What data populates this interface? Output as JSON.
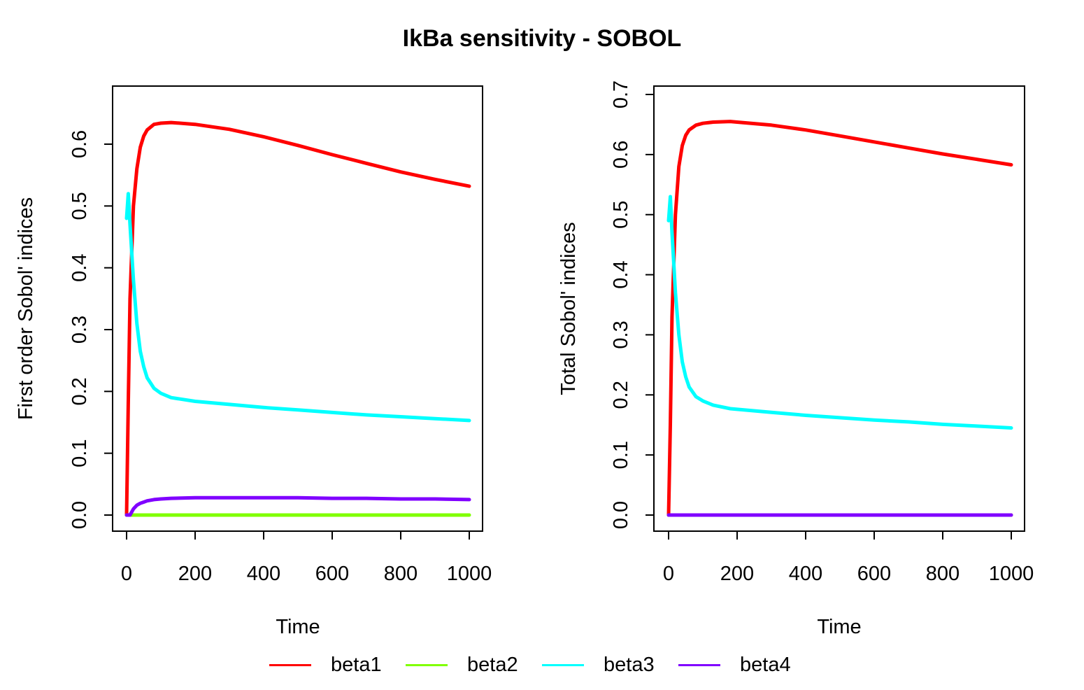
{
  "title": "IkBa sensitivity - SOBOL",
  "legend": [
    {
      "name": "beta1",
      "color": "#ff0000"
    },
    {
      "name": "beta2",
      "color": "#80ff00"
    },
    {
      "name": "beta3",
      "color": "#00ffff"
    },
    {
      "name": "beta4",
      "color": "#8000ff"
    }
  ],
  "chart_data": [
    {
      "type": "line",
      "xlabel": "Time",
      "ylabel": "First order Sobol' indices",
      "xlim": [
        0,
        1000
      ],
      "ylim": [
        0,
        0.6
      ],
      "xticks": [
        "0",
        "200",
        "400",
        "600",
        "800",
        "1000"
      ],
      "yticks": [
        "0.0",
        "0.1",
        "0.2",
        "0.3",
        "0.4",
        "0.5",
        "0.6"
      ],
      "x": [
        0,
        5,
        10,
        20,
        30,
        40,
        50,
        60,
        80,
        100,
        130,
        200,
        300,
        400,
        500,
        600,
        700,
        800,
        900,
        1000
      ],
      "series": [
        {
          "name": "beta1",
          "values": [
            0.0,
            0.18,
            0.35,
            0.5,
            0.56,
            0.595,
            0.613,
            0.623,
            0.632,
            0.634,
            0.635,
            0.632,
            0.624,
            0.612,
            0.598,
            0.583,
            0.569,
            0.555,
            0.543,
            0.532
          ]
        },
        {
          "name": "beta2",
          "values": [
            0.0,
            0.0,
            0.0,
            0.0,
            0.0,
            0.0,
            0.0,
            0.0,
            0.0,
            0.0,
            0.0,
            0.0,
            0.0,
            0.0,
            0.0,
            0.0,
            0.0,
            0.0,
            0.0,
            0.0
          ]
        },
        {
          "name": "beta3",
          "values": [
            0.48,
            0.52,
            0.47,
            0.38,
            0.31,
            0.265,
            0.24,
            0.222,
            0.205,
            0.197,
            0.19,
            0.184,
            0.179,
            0.174,
            0.17,
            0.166,
            0.162,
            0.159,
            0.156,
            0.153
          ]
        },
        {
          "name": "beta4",
          "values": [
            0.0,
            0.0,
            0.0,
            0.01,
            0.016,
            0.019,
            0.021,
            0.023,
            0.025,
            0.026,
            0.027,
            0.028,
            0.028,
            0.028,
            0.028,
            0.027,
            0.027,
            0.026,
            0.026,
            0.025
          ]
        }
      ]
    },
    {
      "type": "line",
      "xlabel": "Time",
      "ylabel": "Total Sobol' indices",
      "xlim": [
        0,
        1000
      ],
      "ylim": [
        0,
        0.7
      ],
      "xticks": [
        "0",
        "200",
        "400",
        "600",
        "800",
        "1000"
      ],
      "yticks": [
        "0.0",
        "0.1",
        "0.2",
        "0.3",
        "0.4",
        "0.5",
        "0.6",
        "0.7"
      ],
      "x": [
        0,
        5,
        10,
        20,
        30,
        40,
        50,
        60,
        80,
        100,
        130,
        180,
        200,
        300,
        400,
        500,
        600,
        700,
        800,
        900,
        1000
      ],
      "series": [
        {
          "name": "beta1",
          "values": [
            0.0,
            0.15,
            0.33,
            0.5,
            0.58,
            0.615,
            0.632,
            0.641,
            0.649,
            0.652,
            0.654,
            0.655,
            0.654,
            0.649,
            0.641,
            0.631,
            0.621,
            0.611,
            0.601,
            0.592,
            0.583
          ]
        },
        {
          "name": "beta2",
          "values": [
            0.0,
            0.0,
            0.0,
            0.0,
            0.0,
            0.0,
            0.0,
            0.0,
            0.0,
            0.0,
            0.0,
            0.0,
            0.0,
            0.0,
            0.0,
            0.0,
            0.0,
            0.0,
            0.0,
            0.0,
            0.0
          ]
        },
        {
          "name": "beta3",
          "values": [
            0.49,
            0.53,
            0.47,
            0.37,
            0.3,
            0.255,
            0.23,
            0.213,
            0.197,
            0.19,
            0.183,
            0.177,
            0.176,
            0.171,
            0.166,
            0.162,
            0.158,
            0.155,
            0.151,
            0.148,
            0.145
          ]
        },
        {
          "name": "beta4",
          "values": [
            0.0,
            0.0,
            0.0,
            0.0,
            0.0,
            0.0,
            0.0,
            0.0,
            0.0,
            0.0,
            0.0,
            0.0,
            0.0,
            0.0,
            0.0,
            0.0,
            0.0,
            0.0,
            0.0,
            0.0,
            0.0
          ]
        }
      ]
    }
  ]
}
